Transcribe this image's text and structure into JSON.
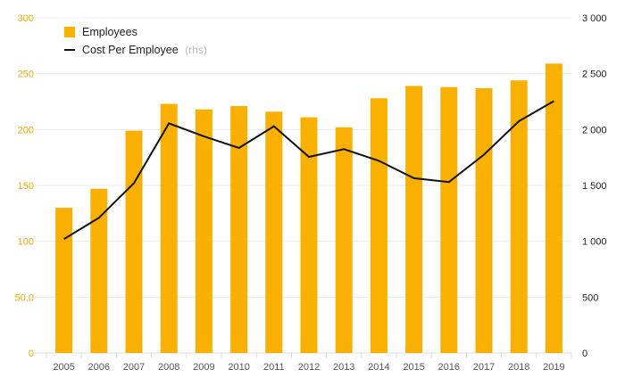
{
  "chart_data": {
    "type": "bar",
    "categories": [
      "2005",
      "2006",
      "2007",
      "2008",
      "2009",
      "2010",
      "2011",
      "2012",
      "2013",
      "2014",
      "2015",
      "2016",
      "2017",
      "2018",
      "2019"
    ],
    "series": [
      {
        "name": "Employees",
        "type": "bar",
        "axis": "left",
        "color": "#f9b000",
        "values": [
          130,
          147,
          199,
          223,
          218,
          221,
          216,
          211,
          202,
          228,
          239,
          238,
          237,
          244,
          259
        ]
      },
      {
        "name": "Cost Per Employee",
        "name_suffix": "(rhs)",
        "type": "line",
        "axis": "right",
        "color": "#111111",
        "values": [
          1020,
          1210,
          1520,
          2055,
          1940,
          1835,
          2030,
          1755,
          1825,
          1720,
          1565,
          1530,
          1775,
          2075,
          2255
        ]
      }
    ],
    "left_axis": {
      "min": 0,
      "max": 300,
      "ticks": [
        "0",
        "50.0",
        "100",
        "150",
        "200",
        "250",
        "300"
      ],
      "color": "#f0a800"
    },
    "right_axis": {
      "min": 0,
      "max": 3000,
      "ticks": [
        "0",
        "500",
        "1 000",
        "1 500",
        "2 000",
        "2 500",
        "3 000"
      ]
    },
    "grid": true,
    "legend_position": "top-left"
  }
}
